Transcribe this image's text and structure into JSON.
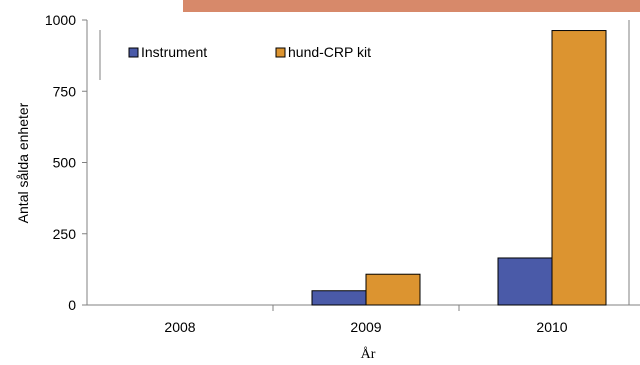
{
  "colors": {
    "instrument": "#4a5aa8",
    "kit": "#dc9430",
    "banner": "#d7896a",
    "axis": "#808080"
  },
  "chart_data": {
    "type": "bar",
    "categories": [
      "2008",
      "2009",
      "2010"
    ],
    "series": [
      {
        "name": "Instrument",
        "values": [
          0,
          50,
          165
        ]
      },
      {
        "name": "hund-CRP kit",
        "values": [
          0,
          108,
          963
        ]
      }
    ],
    "xlabel": "År",
    "ylabel": "Antal sålda enheter",
    "ylim": [
      0,
      1000
    ],
    "yticks": [
      "0",
      "250",
      "500",
      "750",
      "1000"
    ],
    "grid": false,
    "legend": "top-left"
  }
}
